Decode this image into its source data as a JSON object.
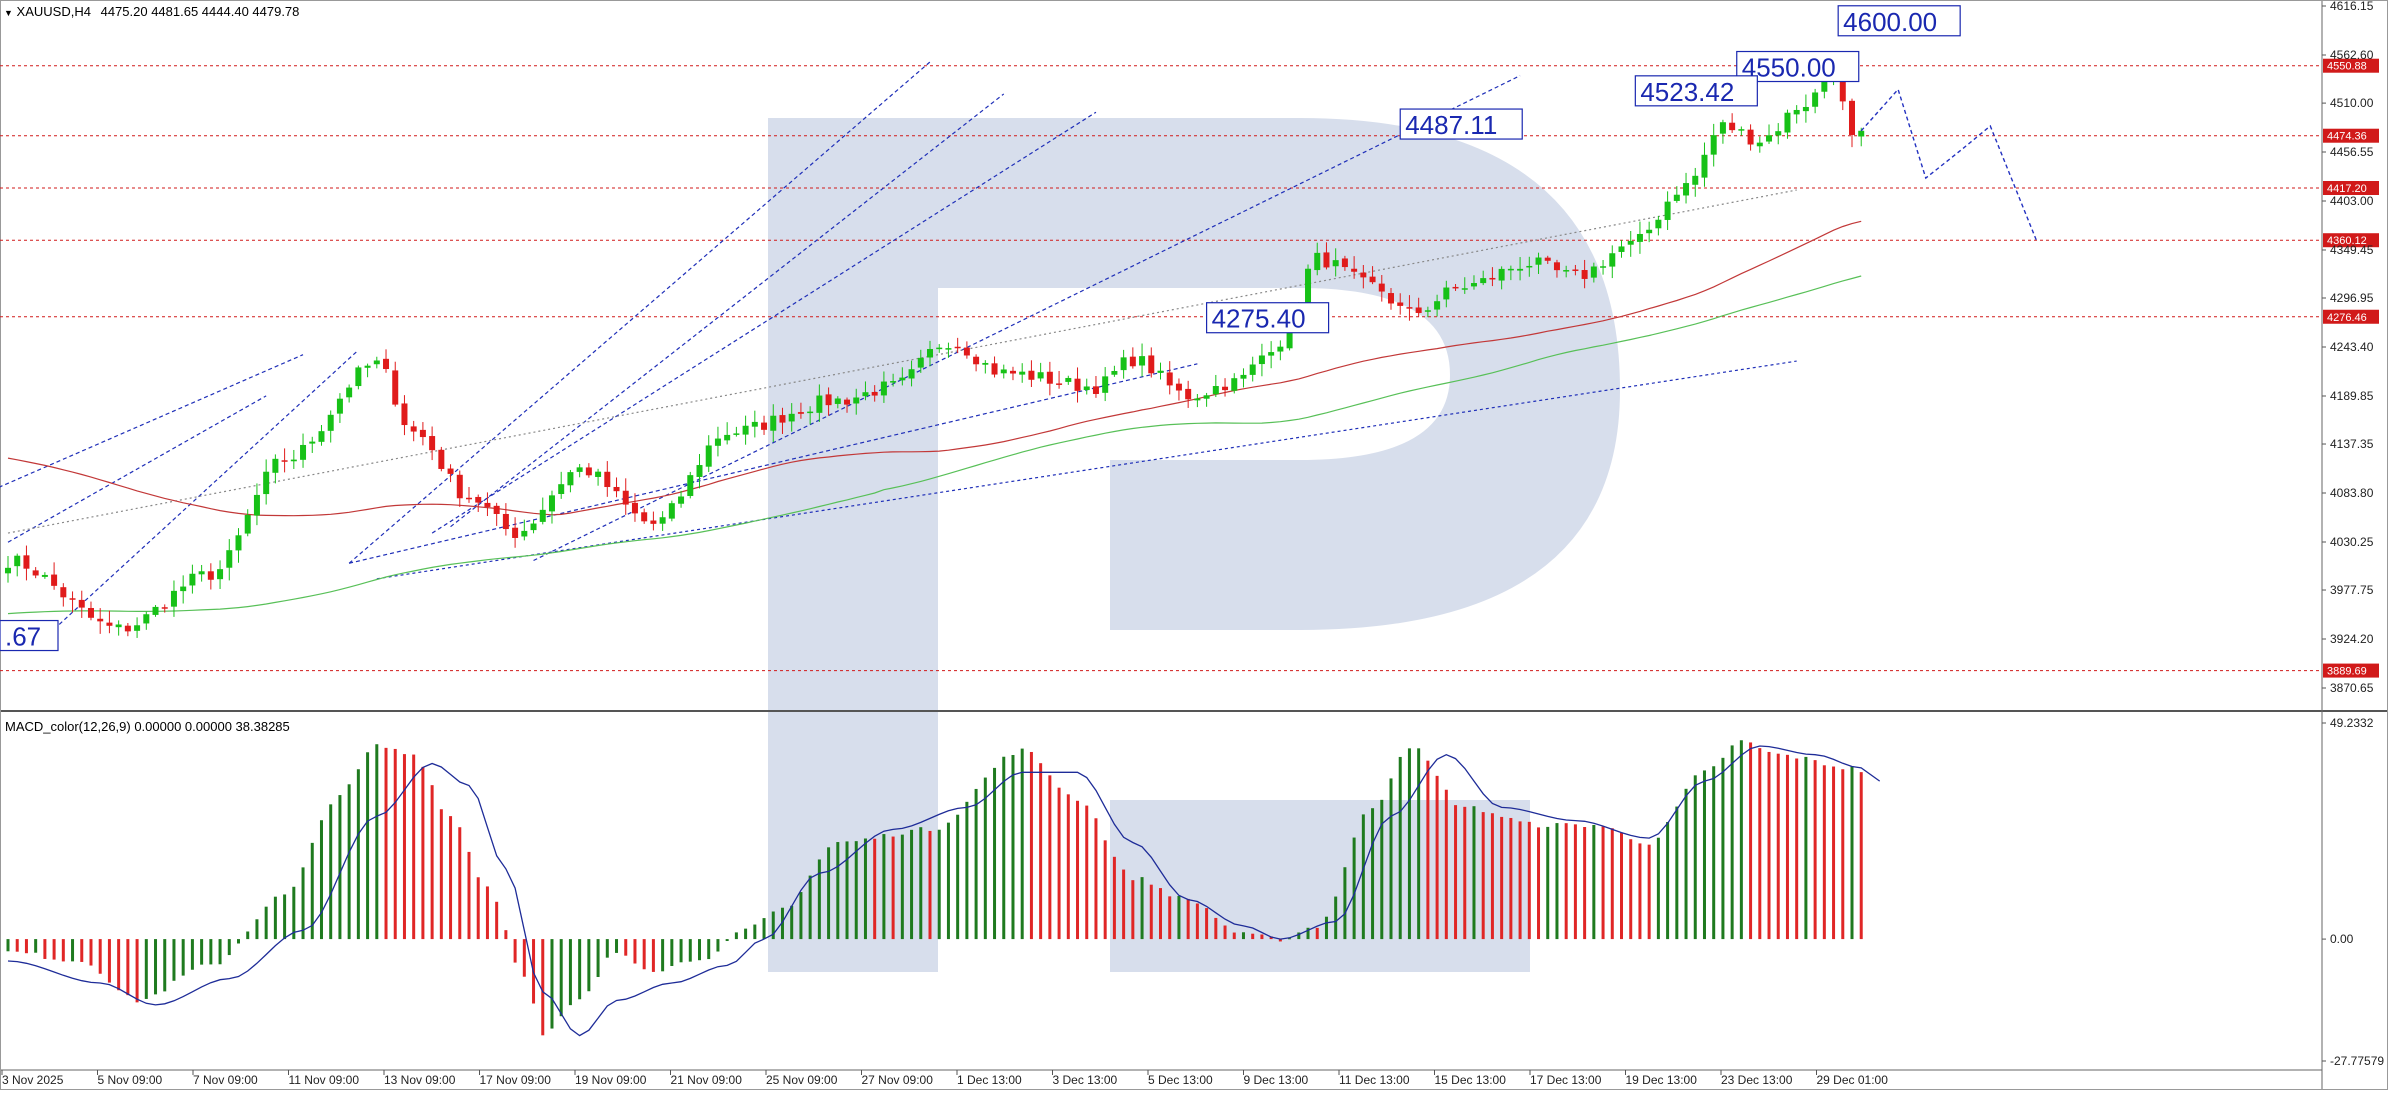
{
  "symbol_header": {
    "symbol": "XAUUSD,H4",
    "ohlc": "4475.20 4481.65 4444.40 4479.78"
  },
  "macd_header": {
    "text": "MACD_color(12,26,9) 0.00000 0.00000 38.38285"
  },
  "colors": {
    "bull": "#17c117",
    "bear": "#e01b1b",
    "level_line": "#d11a1a",
    "ma_red": "#c23838",
    "ma_green": "#58c058",
    "trend_blue": "#1f2fb8",
    "forecast_blue": "#2432c0",
    "label_blue": "#1a28b0",
    "macd_green": "#1f7a1f",
    "macd_red": "#e02626",
    "signal": "#1e2c98",
    "watermark": "#c9d3e6"
  },
  "chart_data": [
    {
      "type": "candlestick",
      "title": "XAUUSD,H4",
      "ylim": [
        3850,
        4620
      ],
      "price_scale_ticks": [
        "4616.15",
        "4562.60",
        "4510.00",
        "4456.55",
        "4403.00",
        "4349.45",
        "4296.95",
        "4243.40",
        "4189.85",
        "4137.35",
        "4083.80",
        "4030.25",
        "3977.75",
        "3924.20",
        "3870.65"
      ],
      "time_labels": [
        "3 Nov 2025",
        "5 Nov 09:00",
        "7 Nov 09:00",
        "11 Nov 09:00",
        "13 Nov 09:00",
        "17 Nov 09:00",
        "19 Nov 09:00",
        "21 Nov 09:00",
        "25 Nov 09:00",
        "27 Nov 09:00",
        "1 Dec 13:00",
        "3 Dec 13:00",
        "5 Dec 13:00",
        "9 Dec 13:00",
        "11 Dec 13:00",
        "15 Dec 13:00",
        "17 Dec 13:00",
        "19 Dec 13:00",
        "23 Dec 13:00",
        "29 Dec 01:00"
      ],
      "close_waypoints": [
        [
          0,
          4010
        ],
        [
          12,
          3935
        ],
        [
          22,
          3995
        ],
        [
          30,
          4120
        ],
        [
          40,
          4225
        ],
        [
          44,
          4150
        ],
        [
          50,
          4080
        ],
        [
          55,
          4040
        ],
        [
          62,
          4110
        ],
        [
          70,
          4050
        ],
        [
          78,
          4150
        ],
        [
          90,
          4185
        ],
        [
          96,
          4200
        ],
        [
          102,
          4250
        ],
        [
          108,
          4215
        ],
        [
          118,
          4200
        ],
        [
          122,
          4230
        ],
        [
          128,
          4190
        ],
        [
          133,
          4205
        ],
        [
          138,
          4250
        ],
        [
          142,
          4340
        ],
        [
          148,
          4310
        ],
        [
          152,
          4280
        ],
        [
          158,
          4310
        ],
        [
          165,
          4335
        ],
        [
          170,
          4320
        ],
        [
          176,
          4355
        ],
        [
          182,
          4420
        ],
        [
          186,
          4485
        ],
        [
          190,
          4470
        ],
        [
          195,
          4510
        ],
        [
          198,
          4545
        ],
        [
          200,
          4470
        ],
        [
          201,
          4479.78
        ]
      ],
      "price_levels": [
        "4550.88",
        "4474.36",
        "4417.20",
        "4360.12",
        "4276.46",
        "3889.69"
      ],
      "annotations": [
        "4600.00",
        "4550.00",
        "4523.42",
        "4487.11",
        "4275.40",
        ".67"
      ],
      "forecast_path": [
        4479.78,
        4525,
        4428,
        4460,
        4485,
        4360
      ]
    },
    {
      "type": "bar",
      "title": "MACD_color(12,26,9)",
      "ylim": [
        -27.77579,
        49.2332
      ],
      "scale_ticks": [
        "49.2332",
        "0.00",
        "-27.77579"
      ],
      "histogram_waypoints": [
        [
          0,
          -3
        ],
        [
          8,
          -5
        ],
        [
          14,
          -14
        ],
        [
          22,
          -6
        ],
        [
          30,
          10
        ],
        [
          36,
          33
        ],
        [
          40,
          44
        ],
        [
          44,
          42
        ],
        [
          48,
          28
        ],
        [
          52,
          12
        ],
        [
          56,
          -8
        ],
        [
          58,
          -22
        ],
        [
          62,
          -14
        ],
        [
          66,
          -3
        ],
        [
          70,
          -7
        ],
        [
          76,
          -4
        ],
        [
          80,
          2
        ],
        [
          84,
          7
        ],
        [
          90,
          22
        ],
        [
          100,
          25
        ],
        [
          110,
          43
        ],
        [
          116,
          32
        ],
        [
          122,
          14
        ],
        [
          128,
          9
        ],
        [
          134,
          1
        ],
        [
          138,
          0
        ],
        [
          142,
          3
        ],
        [
          148,
          30
        ],
        [
          152,
          44
        ],
        [
          158,
          30
        ],
        [
          166,
          26
        ],
        [
          172,
          26
        ],
        [
          178,
          22
        ],
        [
          184,
          38
        ],
        [
          188,
          45
        ],
        [
          192,
          42
        ],
        [
          200,
          39
        ],
        [
          201,
          38.38
        ]
      ],
      "signal_waypoints": [
        [
          0,
          -5
        ],
        [
          10,
          -10
        ],
        [
          16,
          -15
        ],
        [
          24,
          -9
        ],
        [
          32,
          2
        ],
        [
          40,
          28
        ],
        [
          46,
          40
        ],
        [
          50,
          35
        ],
        [
          54,
          16
        ],
        [
          58,
          -12
        ],
        [
          62,
          -22
        ],
        [
          66,
          -14
        ],
        [
          72,
          -10
        ],
        [
          78,
          -6
        ],
        [
          82,
          0
        ],
        [
          88,
          15
        ],
        [
          96,
          25
        ],
        [
          104,
          30
        ],
        [
          110,
          38
        ],
        [
          116,
          38
        ],
        [
          122,
          22
        ],
        [
          128,
          9
        ],
        [
          134,
          3
        ],
        [
          138,
          0
        ],
        [
          144,
          4
        ],
        [
          150,
          28
        ],
        [
          156,
          42
        ],
        [
          162,
          30
        ],
        [
          170,
          27
        ],
        [
          178,
          23
        ],
        [
          184,
          36
        ],
        [
          190,
          44
        ],
        [
          196,
          42
        ],
        [
          201,
          39
        ]
      ]
    }
  ]
}
